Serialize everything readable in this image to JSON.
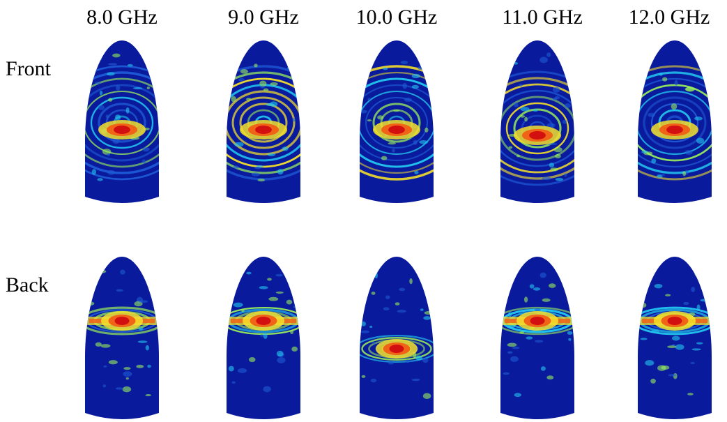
{
  "figure": {
    "frequencies": [
      "8.0 GHz",
      "9.0 GHz",
      "10.0 GHz",
      "11.0 GHz",
      "12.0 GHz"
    ],
    "rows": [
      "Front",
      "Back"
    ],
    "colormap": "jet",
    "colors": {
      "base": "#0a1a9c",
      "low": "#1e5bd6",
      "mid_low": "#22c8f0",
      "mid": "#9af05a",
      "mid_high": "#f5e02a",
      "high": "#f06418",
      "peak": "#d21010"
    }
  }
}
